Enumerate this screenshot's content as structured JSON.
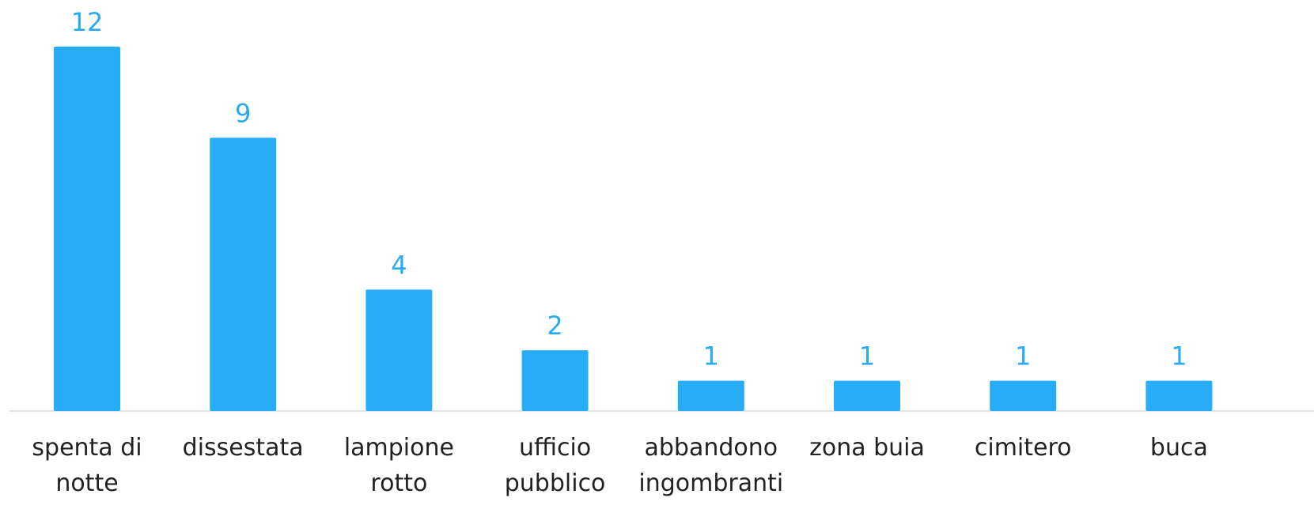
{
  "chart_data": {
    "type": "bar",
    "categories": [
      "spenta di notte",
      "dissestata",
      "lampione rotto",
      "ufficio pubblico",
      "abbandono ingombranti",
      "zona buia",
      "cimitero",
      "buca"
    ],
    "values": [
      12,
      9,
      4,
      2,
      1,
      1,
      1,
      1
    ],
    "color": "#27adf7",
    "ylim": [
      0,
      12
    ]
  }
}
